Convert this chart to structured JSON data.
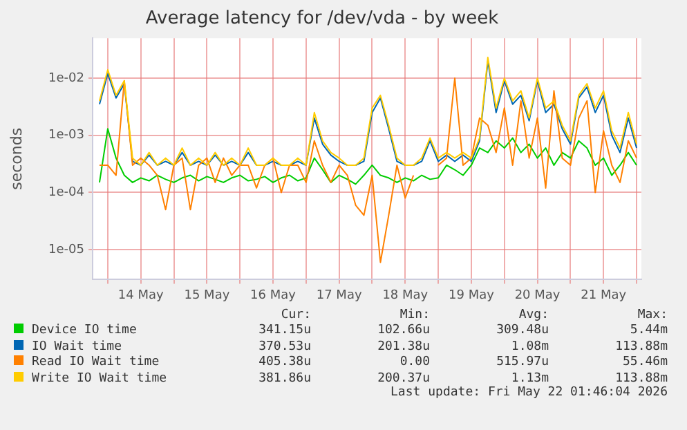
{
  "chart_data": {
    "type": "line",
    "title": "Average latency for /dev/vda - by week",
    "ylabel": "seconds",
    "x": [
      "2026-05-13T21:00",
      "2026-05-14T00:00",
      "2026-05-14T03:00",
      "2026-05-14T06:00",
      "2026-05-14T09:00",
      "2026-05-14T12:00",
      "2026-05-14T15:00",
      "2026-05-14T18:00",
      "2026-05-14T21:00",
      "2026-05-15T00:00",
      "2026-05-15T03:00",
      "2026-05-15T06:00",
      "2026-05-15T09:00",
      "2026-05-15T12:00",
      "2026-05-15T15:00",
      "2026-05-15T18:00",
      "2026-05-15T21:00",
      "2026-05-16T00:00",
      "2026-05-16T03:00",
      "2026-05-16T06:00",
      "2026-05-16T09:00",
      "2026-05-16T12:00",
      "2026-05-16T15:00",
      "2026-05-16T18:00",
      "2026-05-16T21:00",
      "2026-05-17T00:00",
      "2026-05-17T03:00",
      "2026-05-17T06:00",
      "2026-05-17T09:00",
      "2026-05-17T12:00",
      "2026-05-17T15:00",
      "2026-05-17T18:00",
      "2026-05-17T21:00",
      "2026-05-18T00:00",
      "2026-05-18T03:00",
      "2026-05-18T06:00",
      "2026-05-18T09:00",
      "2026-05-18T12:00",
      "2026-05-18T15:00",
      "2026-05-18T18:00",
      "2026-05-18T21:00",
      "2026-05-19T00:00",
      "2026-05-19T03:00",
      "2026-05-19T06:00",
      "2026-05-19T09:00",
      "2026-05-19T12:00",
      "2026-05-19T15:00",
      "2026-05-19T18:00",
      "2026-05-19T21:00",
      "2026-05-20T00:00",
      "2026-05-20T03:00",
      "2026-05-20T06:00",
      "2026-05-20T09:00",
      "2026-05-20T12:00",
      "2026-05-20T15:00",
      "2026-05-20T18:00",
      "2026-05-20T21:00",
      "2026-05-21T00:00",
      "2026-05-21T03:00",
      "2026-05-21T06:00",
      "2026-05-21T09:00",
      "2026-05-21T12:00",
      "2026-05-21T15:00",
      "2026-05-21T18:00",
      "2026-05-21T21:00",
      "2026-05-22T00:00"
    ],
    "series": [
      {
        "name": "Device IO time",
        "color": "#00cc00",
        "values": [
          0.00015,
          0.0013,
          0.0004,
          0.0002,
          0.00015,
          0.00018,
          0.00016,
          0.0002,
          0.00017,
          0.00015,
          0.00018,
          0.0002,
          0.00016,
          0.00019,
          0.00017,
          0.00015,
          0.00018,
          0.0002,
          0.00016,
          0.00017,
          0.00019,
          0.00015,
          0.00018,
          0.0002,
          0.00016,
          0.00018,
          0.0004,
          0.00025,
          0.00015,
          0.0002,
          0.00017,
          0.00014,
          0.0002,
          0.0003,
          0.0002,
          0.00018,
          0.00015,
          0.00018,
          0.00016,
          0.0002,
          0.00017,
          0.00018,
          0.0003,
          0.00025,
          0.0002,
          0.0003,
          0.0006,
          0.0005,
          0.0008,
          0.0006,
          0.0009,
          0.0005,
          0.0007,
          0.0004,
          0.0006,
          0.0003,
          0.0005,
          0.0004,
          0.0008,
          0.0006,
          0.0003,
          0.0004,
          0.0002,
          0.0003,
          0.0005,
          0.0003
        ]
      },
      {
        "name": "IO Wait time",
        "color": "#0066b3",
        "values": [
          0.0035,
          0.012,
          0.0045,
          0.008,
          0.00035,
          0.0003,
          0.00045,
          0.0003,
          0.00035,
          0.0003,
          0.0005,
          0.0003,
          0.00035,
          0.0003,
          0.00045,
          0.0003,
          0.00035,
          0.0003,
          0.0005,
          0.0003,
          0.0003,
          0.00035,
          0.0003,
          0.0003,
          0.00035,
          0.0003,
          0.002,
          0.0007,
          0.00045,
          0.00035,
          0.0003,
          0.0003,
          0.00035,
          0.0025,
          0.0045,
          0.0013,
          0.00035,
          0.0003,
          0.0003,
          0.00035,
          0.0008,
          0.00035,
          0.00045,
          0.00035,
          0.00045,
          0.00035,
          0.0008,
          0.02,
          0.0025,
          0.009,
          0.0035,
          0.005,
          0.0018,
          0.009,
          0.0025,
          0.0035,
          0.0013,
          0.0007,
          0.0045,
          0.007,
          0.0025,
          0.005,
          0.001,
          0.0005,
          0.002,
          0.0006
        ]
      },
      {
        "name": "Read IO Wait time",
        "color": "#ff8000",
        "values": [
          0.0003,
          0.0003,
          0.0002,
          0.009,
          0.0003,
          0.0004,
          0.0003,
          0.0002,
          5e-05,
          0.0003,
          0.0004,
          5e-05,
          0.0003,
          0.0004,
          0.00015,
          0.0004,
          0.0002,
          0.0003,
          0.0003,
          0.00012,
          0.0003,
          0.0004,
          0.0001,
          0.0003,
          0.0003,
          0.00015,
          0.0008,
          0.0003,
          0.00015,
          0.0003,
          0.0002,
          6e-05,
          4e-05,
          0.0002,
          6e-06,
          4e-05,
          0.0003,
          8e-05,
          0.0002,
          null,
          null,
          0.0003,
          0.0004,
          0.01,
          0.0003,
          0.0004,
          0.002,
          0.0015,
          0.0005,
          0.003,
          0.0003,
          0.004,
          0.0004,
          0.002,
          0.00012,
          0.006,
          0.0004,
          0.0003,
          0.002,
          0.004,
          0.0001,
          0.0012,
          0.0003,
          0.00015,
          0.0008,
          0.0004
        ]
      },
      {
        "name": "Write IO Wait time",
        "color": "#ffcc00",
        "values": [
          0.004,
          0.014,
          0.005,
          0.009,
          0.0004,
          0.0003,
          0.0005,
          0.0003,
          0.0004,
          0.0003,
          0.0006,
          0.0003,
          0.0004,
          0.0003,
          0.0005,
          0.0003,
          0.0004,
          0.0003,
          0.0006,
          0.0003,
          0.0003,
          0.0004,
          0.0003,
          0.0003,
          0.0004,
          0.0003,
          0.0025,
          0.0008,
          0.0005,
          0.0004,
          0.0003,
          0.0003,
          0.0004,
          0.003,
          0.005,
          0.0015,
          0.0004,
          0.0003,
          0.0003,
          0.0004,
          0.0009,
          0.0004,
          0.0005,
          0.0004,
          0.0005,
          0.0004,
          0.0009,
          0.023,
          0.003,
          0.01,
          0.004,
          0.006,
          0.002,
          0.01,
          0.003,
          0.004,
          0.0015,
          0.0008,
          0.005,
          0.008,
          0.003,
          0.006,
          0.0012,
          0.0006,
          0.0025,
          0.0007
        ]
      }
    ],
    "xlim": [
      "2026-05-13T18:30",
      "2026-05-22T01:45"
    ],
    "xticks": [
      {
        "value": "2026-05-14T00:00",
        "label": null
      },
      {
        "value": "2026-05-14T12:00",
        "label": "14 May"
      },
      {
        "value": "2026-05-15T00:00",
        "label": null
      },
      {
        "value": "2026-05-15T12:00",
        "label": "15 May"
      },
      {
        "value": "2026-05-16T00:00",
        "label": null
      },
      {
        "value": "2026-05-16T12:00",
        "label": "16 May"
      },
      {
        "value": "2026-05-17T00:00",
        "label": null
      },
      {
        "value": "2026-05-17T12:00",
        "label": "17 May"
      },
      {
        "value": "2026-05-18T00:00",
        "label": null
      },
      {
        "value": "2026-05-18T12:00",
        "label": "18 May"
      },
      {
        "value": "2026-05-19T00:00",
        "label": null
      },
      {
        "value": "2026-05-19T12:00",
        "label": "19 May"
      },
      {
        "value": "2026-05-20T00:00",
        "label": null
      },
      {
        "value": "2026-05-20T12:00",
        "label": "20 May"
      },
      {
        "value": "2026-05-21T00:00",
        "label": null
      },
      {
        "value": "2026-05-21T12:00",
        "label": "21 May"
      },
      {
        "value": "2026-05-22T00:00",
        "label": null
      }
    ],
    "ylim": [
      3e-06,
      0.05
    ],
    "log": true,
    "yticks": [
      {
        "value": 1e-05,
        "label": "1e-05"
      },
      {
        "value": 0.0001,
        "label": "1e-04"
      },
      {
        "value": 0.001,
        "label": "1e-03"
      },
      {
        "value": 0.01,
        "label": "1e-02"
      }
    ],
    "grid": true,
    "legend": "bottom",
    "marker": "none",
    "line_style": "solid",
    "annotations": [
      "Cur:",
      "Min:",
      "Avg:",
      "Max:",
      "341.15u",
      "102.66u",
      "309.48u",
      "5.44m",
      "370.53u",
      "201.38u",
      "1.08m",
      "113.88m",
      "405.38u",
      "0.00",
      "515.97u",
      "55.46m",
      "381.86u",
      "200.37u",
      "1.13m",
      "113.88m",
      "Last update: Fri May 22 01:46:04 2026"
    ]
  }
}
